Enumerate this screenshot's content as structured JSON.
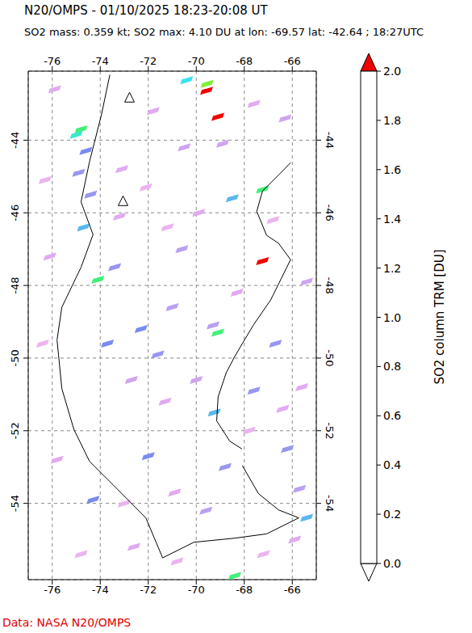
{
  "chart_data": {
    "type": "map",
    "title": "N20/OMPS - 01/10/2025 18:23-20:08 UT",
    "subtitle": "SO2 mass: 0.359 kt; SO2 max: 4.10 DU at lon: -69.57 lat: -42.64 ; 18:27UTC",
    "footer": "Data: NASA N20/OMPS",
    "xlim": [
      -77,
      -65
    ],
    "xticks": [
      -76,
      -74,
      -72,
      -70,
      -68,
      -66
    ],
    "ylim": [
      -56.1,
      -42.1
    ],
    "yticks": [
      -54,
      -52,
      -50,
      -48,
      -46,
      -44
    ],
    "grid": true,
    "colorbar": {
      "label": "SO2 column TRM [DU]",
      "range": [
        0,
        2
      ],
      "ticks": [
        {
          "value": 0,
          "label": "0.0"
        },
        {
          "value": 0.2,
          "label": "0.2"
        },
        {
          "value": 0.4,
          "label": "0.4"
        },
        {
          "value": 0.6,
          "label": "0.6"
        },
        {
          "value": 0.8,
          "label": "0.8"
        },
        {
          "value": 1,
          "label": "1.0"
        },
        {
          "value": 1.2,
          "label": "1.2"
        },
        {
          "value": 1.4,
          "label": "1.4"
        },
        {
          "value": 1.6,
          "label": "1.6"
        },
        {
          "value": 1.8,
          "label": "1.8"
        },
        {
          "value": 2,
          "label": "2.0"
        }
      ]
    },
    "cells": [
      {
        "lon": -69.57,
        "lat": -42.64,
        "value": 4.1
      },
      {
        "lon": -69.55,
        "lat": -42.45,
        "value": 1.5
      },
      {
        "lon": -69.1,
        "lat": -43.36,
        "value": 2.3
      },
      {
        "lon": -70.4,
        "lat": -42.35,
        "value": 1.0
      },
      {
        "lon": -74.8,
        "lat": -43.7,
        "value": 1.3
      },
      {
        "lon": -75.0,
        "lat": -43.85,
        "value": 1.1
      },
      {
        "lon": -74.6,
        "lat": -44.3,
        "value": 0.8
      },
      {
        "lon": -74.9,
        "lat": -44.9,
        "value": 0.7
      },
      {
        "lon": -74.4,
        "lat": -45.5,
        "value": 0.7
      },
      {
        "lon": -74.7,
        "lat": -46.4,
        "value": 0.9
      },
      {
        "lon": -74.1,
        "lat": -47.84,
        "value": 1.3
      },
      {
        "lon": -73.4,
        "lat": -47.5,
        "value": 0.7
      },
      {
        "lon": -67.24,
        "lat": -47.33,
        "value": 2.3
      },
      {
        "lon": -69.1,
        "lat": -49.3,
        "value": 1.3
      },
      {
        "lon": -69.3,
        "lat": -49.1,
        "value": 0.6
      },
      {
        "lon": -67.24,
        "lat": -45.36,
        "value": 1.3
      },
      {
        "lon": -68.5,
        "lat": -45.6,
        "value": 0.9
      },
      {
        "lon": -69.25,
        "lat": -51.5,
        "value": 0.9
      },
      {
        "lon": -68.4,
        "lat": -56.0,
        "value": 1.3
      },
      {
        "lon": -65.4,
        "lat": -54.4,
        "value": 0.9
      },
      {
        "lon": -72.3,
        "lat": -49.2,
        "value": 0.8
      },
      {
        "lon": -71.6,
        "lat": -49.9,
        "value": 0.7
      },
      {
        "lon": -73.7,
        "lat": -49.6,
        "value": 0.8
      },
      {
        "lon": -72.0,
        "lat": -52.7,
        "value": 0.8
      },
      {
        "lon": -74.3,
        "lat": -53.9,
        "value": 0.8
      },
      {
        "lon": -67.6,
        "lat": -50.9,
        "value": 0.7
      },
      {
        "lon": -66.7,
        "lat": -49.6,
        "value": 0.7
      },
      {
        "lon": -70.6,
        "lat": -47.0,
        "value": 0.6
      },
      {
        "lon": -71.0,
        "lat": -48.6,
        "value": 0.6
      },
      {
        "lon": -66.2,
        "lat": -52.5,
        "value": 0.7
      },
      {
        "lon": -65.7,
        "lat": -53.6,
        "value": 0.6
      },
      {
        "lon": -68.8,
        "lat": -53.0,
        "value": 0.7
      },
      {
        "lon": -69.6,
        "lat": -54.2,
        "value": 0.6
      },
      {
        "lon": -70.5,
        "lat": -44.2,
        "value": 0.5
      },
      {
        "lon": -66.3,
        "lat": -43.4,
        "value": 0.5
      },
      {
        "lon": -71.8,
        "lat": -43.2,
        "value": 0.4
      },
      {
        "lon": -73.1,
        "lat": -44.8,
        "value": 0.4
      },
      {
        "lon": -75.9,
        "lat": -42.6,
        "value": 0.4
      },
      {
        "lon": -76.3,
        "lat": -45.1,
        "value": 0.3
      },
      {
        "lon": -76.1,
        "lat": -47.2,
        "value": 0.4
      },
      {
        "lon": -76.4,
        "lat": -49.6,
        "value": 0.3
      },
      {
        "lon": -75.8,
        "lat": -52.8,
        "value": 0.4
      },
      {
        "lon": -74.8,
        "lat": -55.4,
        "value": 0.3
      },
      {
        "lon": -72.6,
        "lat": -55.2,
        "value": 0.4
      },
      {
        "lon": -70.8,
        "lat": -55.6,
        "value": 0.3
      },
      {
        "lon": -67.2,
        "lat": -55.4,
        "value": 0.3
      },
      {
        "lon": -65.9,
        "lat": -55.0,
        "value": 0.4
      },
      {
        "lon": -65.4,
        "lat": -47.9,
        "value": 0.5
      },
      {
        "lon": -65.6,
        "lat": -50.8,
        "value": 0.4
      },
      {
        "lon": -66.8,
        "lat": -46.2,
        "value": 0.3
      },
      {
        "lon": -68.3,
        "lat": -48.2,
        "value": 0.4
      },
      {
        "lon": -70.0,
        "lat": -50.6,
        "value": 0.5
      },
      {
        "lon": -71.3,
        "lat": -51.2,
        "value": 0.4
      },
      {
        "lon": -72.7,
        "lat": -50.6,
        "value": 0.5
      },
      {
        "lon": -73.2,
        "lat": -46.1,
        "value": 0.4
      },
      {
        "lon": -72.1,
        "lat": -45.3,
        "value": 0.3
      },
      {
        "lon": -71.2,
        "lat": -46.4,
        "value": 0.3
      },
      {
        "lon": -69.9,
        "lat": -46.0,
        "value": 0.4
      },
      {
        "lon": -68.9,
        "lat": -44.1,
        "value": 0.5
      },
      {
        "lon": -67.6,
        "lat": -43.0,
        "value": 0.4
      },
      {
        "lon": -70.9,
        "lat": -53.7,
        "value": 0.4
      },
      {
        "lon": -73.0,
        "lat": -54.0,
        "value": 0.3
      },
      {
        "lon": -67.8,
        "lat": -52.0,
        "value": 0.3
      },
      {
        "lon": -66.4,
        "lat": -51.4,
        "value": 0.4
      }
    ],
    "volcanoes": {
      "lon": [
        -72.78,
        -73.05
      ],
      "lat": [
        -42.84,
        -45.69
      ]
    },
    "coastline": [
      {
        "lon": [
          -66.07,
          -66.57,
          -67.24,
          -67.48,
          -67.07,
          -66.57,
          -66.07,
          -66.4,
          -66.9,
          -67.6,
          -68.08,
          -68.4,
          -68.75,
          -69.09,
          -69.15,
          -68.6,
          -68.1
        ],
        "lat": [
          -44.62,
          -44.96,
          -45.4,
          -45.96,
          -46.62,
          -46.84,
          -47.29,
          -47.73,
          -48.4,
          -49.07,
          -49.6,
          -49.96,
          -50.4,
          -51.07,
          -51.73,
          -52.29,
          -52.5
        ]
      },
      {
        "lon": [
          -68.08,
          -67.41,
          -66.57,
          -65.73,
          -67.07,
          -68.42,
          -70.1,
          -71.4
        ],
        "lat": [
          -52.96,
          -53.73,
          -54.18,
          -54.4,
          -54.84,
          -54.96,
          -55.07,
          -55.5
        ]
      },
      {
        "lon": [
          -73.6,
          -73.95,
          -74.45,
          -74.8,
          -74.3,
          -74.8,
          -75.6,
          -75.8,
          -75.6,
          -75.1,
          -74.45,
          -73.45,
          -72.1,
          -71.4
        ],
        "lat": [
          -42.2,
          -43.3,
          -44.6,
          -45.7,
          -46.6,
          -47.5,
          -48.6,
          -49.5,
          -50.84,
          -51.96,
          -52.84,
          -53.5,
          -54.4,
          -55.5
        ]
      }
    ]
  }
}
